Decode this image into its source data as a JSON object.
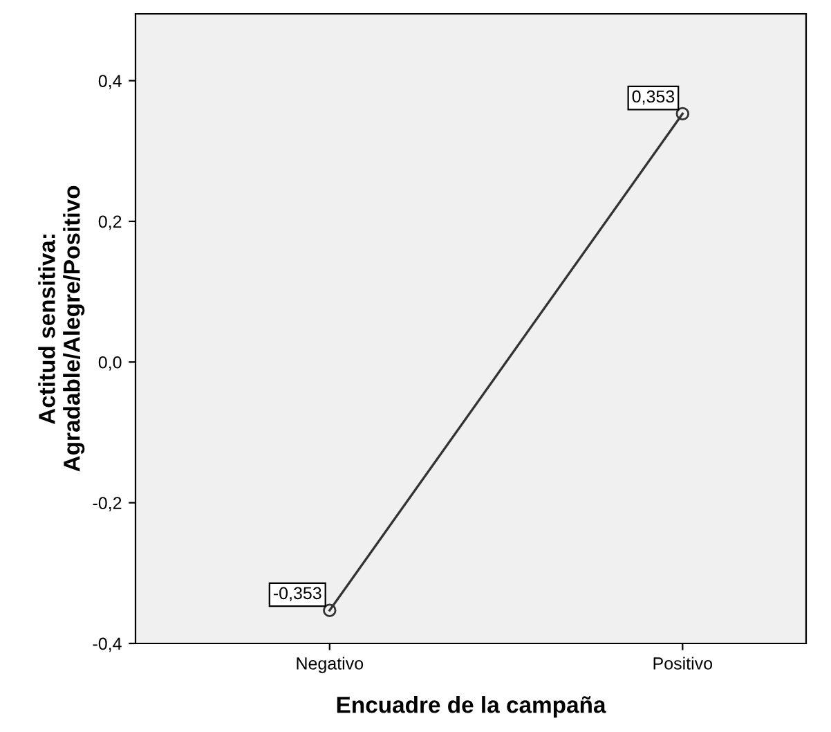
{
  "chart_data": {
    "type": "line",
    "xlabel": "Encuadre de la campaña",
    "ylabel": "Actitud sensitiva:\nAgradable/Alegre/Positivo",
    "categories": [
      "Negativo",
      "Positivo"
    ],
    "series": [
      {
        "color": "#333333",
        "values": [
          -0.353,
          0.353
        ],
        "value_labels": [
          "-0,353",
          "0,353"
        ]
      }
    ],
    "ylim": [
      -0.4,
      0.495
    ],
    "yticks": [
      {
        "value": -0.4,
        "label": "-0,4"
      },
      {
        "value": -0.2,
        "label": "-0,2"
      },
      {
        "value": 0.0,
        "label": "0,0"
      },
      {
        "value": 0.2,
        "label": "0,2"
      },
      {
        "value": 0.4,
        "label": "0,4"
      }
    ],
    "marker": "circle",
    "line_style": "solid",
    "grid": false,
    "legend": false
  }
}
